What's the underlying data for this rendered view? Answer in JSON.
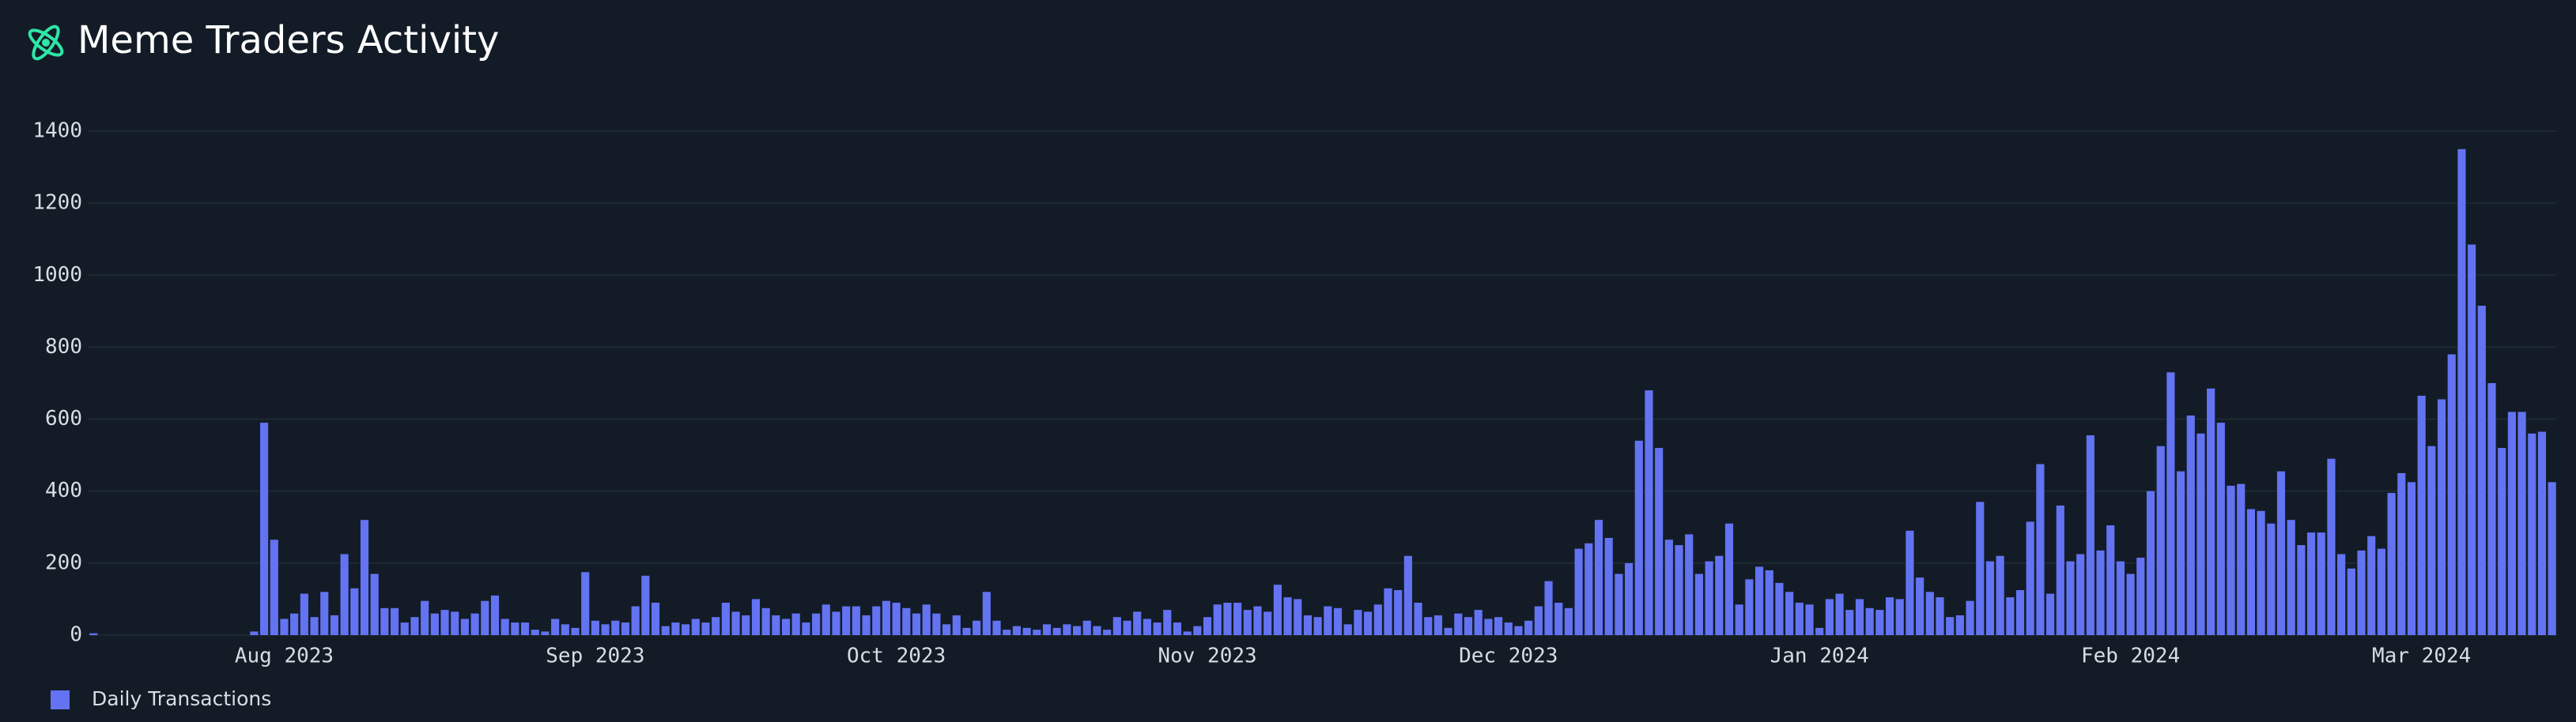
{
  "chart_data": {
    "type": "bar",
    "title": "Meme Traders Activity",
    "categories": [
      null,
      null,
      null,
      null,
      null,
      null,
      null,
      null,
      null,
      null,
      null,
      null,
      null,
      null,
      null,
      null,
      null,
      null,
      null,
      "Aug 2023",
      null,
      null,
      null,
      null,
      null,
      null,
      null,
      null,
      null,
      null,
      null,
      null,
      null,
      null,
      null,
      null,
      null,
      null,
      null,
      null,
      null,
      null,
      null,
      null,
      null,
      null,
      null,
      null,
      null,
      null,
      "Sep 2023",
      null,
      null,
      null,
      null,
      null,
      null,
      null,
      null,
      null,
      null,
      null,
      null,
      null,
      null,
      null,
      null,
      null,
      null,
      null,
      null,
      null,
      null,
      null,
      null,
      null,
      null,
      null,
      null,
      null,
      "Oct 2023",
      null,
      null,
      null,
      null,
      null,
      null,
      null,
      null,
      null,
      null,
      null,
      null,
      null,
      null,
      null,
      null,
      null,
      null,
      null,
      null,
      null,
      null,
      null,
      null,
      null,
      null,
      null,
      null,
      null,
      null,
      "Nov 2023",
      null,
      null,
      null,
      null,
      null,
      null,
      null,
      null,
      null,
      null,
      null,
      null,
      null,
      null,
      null,
      null,
      null,
      null,
      null,
      null,
      null,
      null,
      null,
      null,
      null,
      null,
      null,
      null,
      null,
      "Dec 2023",
      null,
      null,
      null,
      null,
      null,
      null,
      null,
      null,
      null,
      null,
      null,
      null,
      null,
      null,
      null,
      null,
      null,
      null,
      null,
      null,
      null,
      null,
      null,
      null,
      null,
      null,
      null,
      null,
      null,
      null,
      "Jan 2024",
      null,
      null,
      null,
      null,
      null,
      null,
      null,
      null,
      null,
      null,
      null,
      null,
      null,
      null,
      null,
      null,
      null,
      null,
      null,
      null,
      null,
      null,
      null,
      null,
      null,
      null,
      null,
      null,
      null,
      null,
      "Feb 2024",
      null,
      null,
      null,
      null,
      null,
      null,
      null,
      null,
      null,
      null,
      null,
      null,
      null,
      null,
      null,
      null,
      null,
      null,
      null,
      null,
      null,
      null,
      null,
      null,
      null,
      null,
      null,
      null,
      "Mar 2024",
      null,
      null,
      null,
      null,
      null,
      null,
      null,
      null,
      null,
      null,
      null,
      null,
      null
    ],
    "series": [
      {
        "name": "Daily Transactions",
        "color": "#6373f2",
        "values": [
          5,
          0,
          0,
          0,
          0,
          0,
          0,
          0,
          0,
          0,
          0,
          0,
          0,
          0,
          0,
          0,
          10,
          590,
          265,
          45,
          60,
          115,
          50,
          120,
          55,
          225,
          130,
          320,
          170,
          75,
          75,
          35,
          50,
          95,
          60,
          70,
          65,
          45,
          60,
          95,
          110,
          45,
          35,
          35,
          15,
          10,
          45,
          30,
          20,
          175,
          40,
          30,
          40,
          35,
          80,
          165,
          90,
          25,
          35,
          30,
          45,
          35,
          50,
          90,
          65,
          55,
          100,
          75,
          55,
          45,
          60,
          35,
          60,
          85,
          65,
          80,
          80,
          55,
          80,
          95,
          90,
          75,
          60,
          85,
          60,
          30,
          55,
          20,
          40,
          120,
          40,
          15,
          25,
          20,
          15,
          30,
          20,
          30,
          25,
          40,
          25,
          15,
          50,
          40,
          65,
          45,
          35,
          70,
          35,
          10,
          25,
          50,
          85,
          90,
          90,
          70,
          80,
          65,
          140,
          105,
          100,
          55,
          50,
          80,
          75,
          30,
          70,
          65,
          85,
          130,
          125,
          220,
          90,
          50,
          55,
          20,
          60,
          50,
          70,
          45,
          50,
          35,
          25,
          40,
          80,
          150,
          90,
          75,
          240,
          255,
          320,
          270,
          170,
          200,
          540,
          680,
          520,
          265,
          250,
          280,
          170,
          205,
          220,
          310,
          85,
          155,
          190,
          180,
          145,
          120,
          90,
          85,
          20,
          100,
          115,
          70,
          100,
          75,
          70,
          105,
          100,
          290,
          160,
          120,
          105,
          50,
          55,
          95,
          370,
          205,
          220,
          105,
          125,
          315,
          475,
          115,
          360,
          205,
          225,
          555,
          235,
          305,
          205,
          170,
          215,
          400,
          525,
          730,
          455,
          610,
          560,
          685,
          590,
          415,
          420,
          350,
          345,
          310,
          455,
          320,
          250,
          285,
          285,
          490,
          225,
          185,
          235,
          275,
          240,
          395,
          450,
          425,
          665,
          525,
          655,
          780,
          1350,
          1085,
          915,
          700,
          520,
          620,
          620,
          560,
          565,
          425
        ]
      }
    ],
    "ylim": [
      0,
      1400
    ],
    "yticks": [
      0,
      200,
      400,
      600,
      800,
      1000,
      1200,
      1400
    ],
    "grid": true,
    "legend": "bottom-left"
  }
}
